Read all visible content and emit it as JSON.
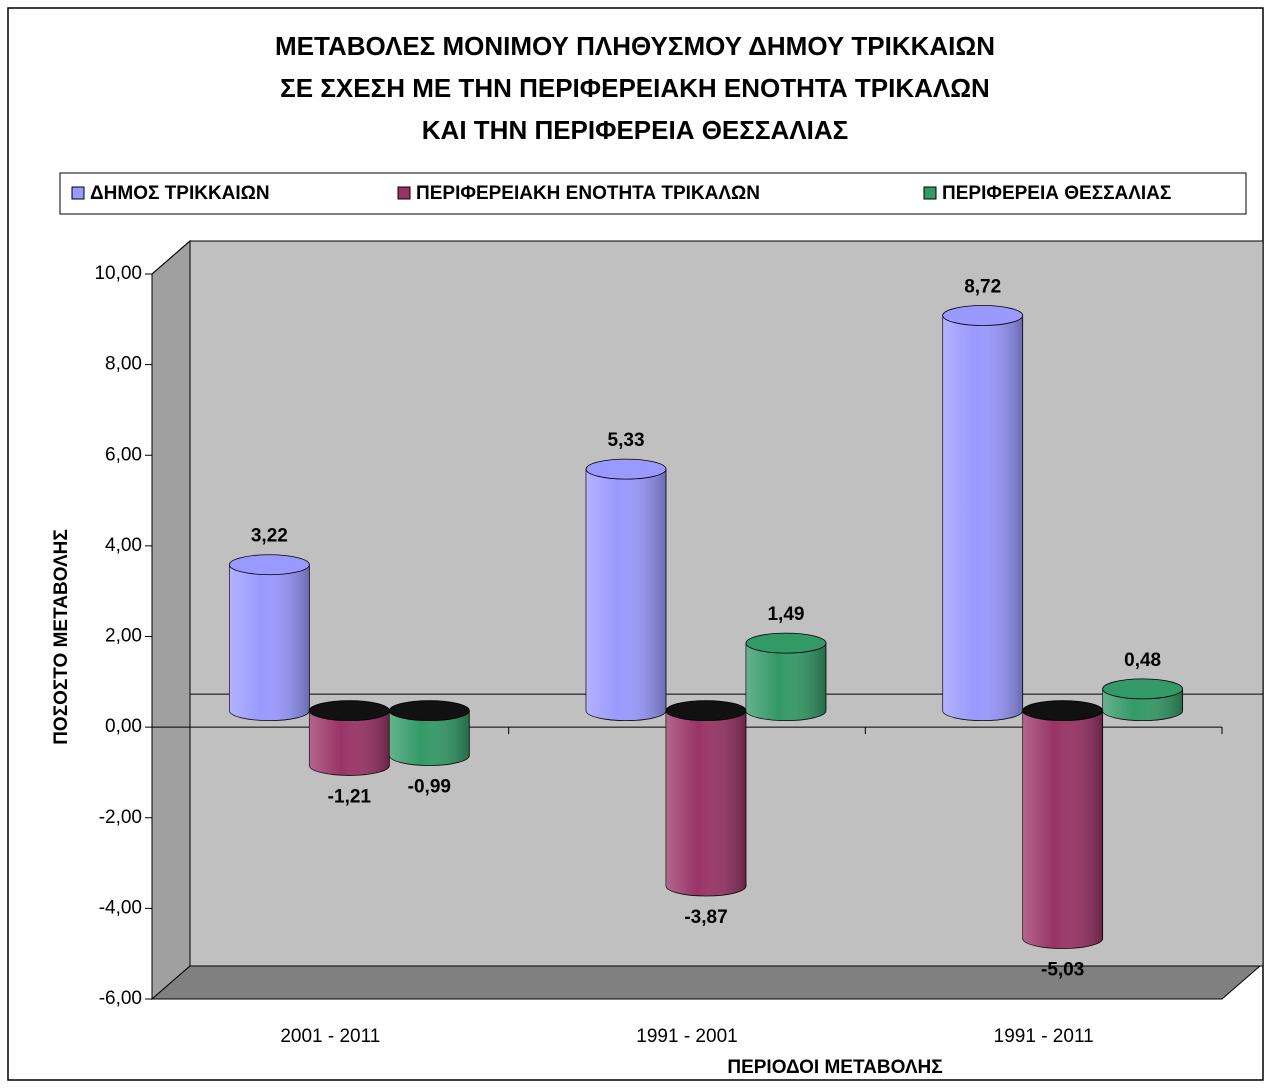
{
  "chart_data": {
    "type": "bar",
    "title": [
      "ΜΕΤΑΒΟΛΕΣ ΜΟΝΙΜΟΥ ΠΛΗΘΥΣΜΟΥ ΔΗΜΟΥ ΤΡΙΚΚΑΙΩΝ",
      "ΣΕ ΣΧΕΣΗ ΜΕ ΤΗΝ ΠΕΡΙΦΕΡΕΙΑΚΗ ΕΝΟΤΗΤΑ ΤΡΙΚΑΛΩΝ",
      "ΚΑΙ ΤΗΝ ΠΕΡΙΦΕΡΕΙΑ ΘΕΣΣΑΛΙΑΣ"
    ],
    "x_label": "ΠΕΡΙΟΔΟΙ ΜΕΤΑΒΟΛΗΣ",
    "y_label": "ΠΟΣΟΣΤΟ ΜΕΤΑΒΟΛΗΣ",
    "categories": [
      "2001 - 2011",
      "1991 - 2001",
      "1991 - 2011"
    ],
    "series": [
      {
        "name": "ΔΗΜΟΣ ΤΡΙΚΚΑΙΩΝ",
        "color": "#9999ff",
        "values": [
          3.22,
          5.33,
          8.72
        ],
        "value_labels": [
          "3,22",
          "5,33",
          "8,72"
        ]
      },
      {
        "name": "ΠΕΡΙΦΕΡΕΙΑΚΗ ΕΝΟΤΗΤΑ ΤΡΙΚΑΛΩΝ",
        "color": "#993366",
        "values": [
          -1.21,
          -3.87,
          -5.03
        ],
        "value_labels": [
          "-1,21",
          "-3,87",
          "-5,03"
        ]
      },
      {
        "name": "ΠΕΡΙΦΕΡΕΙΑ ΘΕΣΣΑΛΙΑΣ",
        "color": "#339966",
        "values": [
          -0.99,
          1.49,
          0.48
        ],
        "value_labels": [
          "-0,99",
          "1,49",
          "0,48"
        ]
      }
    ],
    "ylim": [
      -6,
      10
    ],
    "yticks": [
      {
        "value": -6,
        "label": "-6,00"
      },
      {
        "value": -4,
        "label": "-4,00"
      },
      {
        "value": -2,
        "label": "-2,00"
      },
      {
        "value": 0,
        "label": "0,00"
      },
      {
        "value": 2,
        "label": "2,00"
      },
      {
        "value": 4,
        "label": "4,00"
      },
      {
        "value": 6,
        "label": "6,00"
      },
      {
        "value": 8,
        "label": "8,00"
      },
      {
        "value": 10,
        "label": "10,00"
      }
    ],
    "legend": "top"
  }
}
